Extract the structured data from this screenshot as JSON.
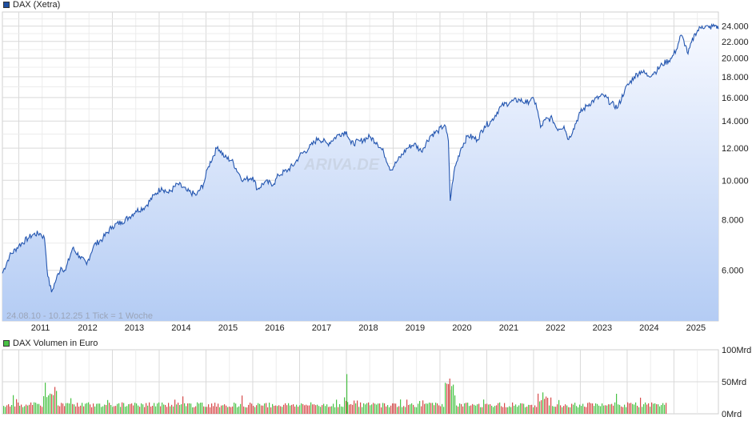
{
  "colors": {
    "price_line": "#2456b0",
    "area_top": "#f7f9ff",
    "area_bottom": "#b4ccf4",
    "volume_up": "#49c245",
    "volume_down": "#d64a4a",
    "grid": "#d9d9d9",
    "watermark": "#c8d2e2"
  },
  "legend": {
    "main": {
      "label": "DAX (Xetra)",
      "color": "#1f4fa0"
    },
    "volume": {
      "label": "DAX Volumen in Euro",
      "color": "#49c245"
    }
  },
  "info_text": "24.08.10 - 10.12.25    1 Tick = 1 Woche",
  "watermark": "ARIVA.DE",
  "chart_data": [
    {
      "type": "line",
      "title": "DAX (Xetra)",
      "x_tick_labels": [
        "2011",
        "2012",
        "2013",
        "2014",
        "2015",
        "2016",
        "2017",
        "2018",
        "2019",
        "2020",
        "2021",
        "2022",
        "2023",
        "2024",
        "2025"
      ],
      "y_scale": "log",
      "y_tick_labels": [
        "6.000",
        "8.000",
        "10.000",
        "12.000",
        "14.000",
        "16.000",
        "18.000",
        "20.000",
        "22.000",
        "24.000"
      ],
      "y_ticks": [
        6000,
        8000,
        10000,
        12000,
        14000,
        16000,
        18000,
        20000,
        22000,
        24000
      ],
      "ylim": [
        4500,
        26000
      ],
      "x_range": [
        2010.65,
        2025.95
      ],
      "grid": true,
      "series": [
        {
          "name": "DAX (Xetra)",
          "x": [
            2010.65,
            2010.8,
            2011.0,
            2011.2,
            2011.3,
            2011.45,
            2011.55,
            2011.62,
            2011.7,
            2011.8,
            2011.9,
            2012.0,
            2012.15,
            2012.3,
            2012.45,
            2012.6,
            2012.8,
            2013.0,
            2013.2,
            2013.35,
            2013.5,
            2013.7,
            2013.9,
            2014.05,
            2014.2,
            2014.4,
            2014.6,
            2014.8,
            2014.95,
            2015.05,
            2015.25,
            2015.4,
            2015.55,
            2015.7,
            2015.8,
            2016.0,
            2016.1,
            2016.25,
            2016.45,
            2016.55,
            2016.75,
            2016.9,
            2017.0,
            2017.2,
            2017.4,
            2017.6,
            2017.85,
            2018.0,
            2018.1,
            2018.3,
            2018.5,
            2018.65,
            2018.8,
            2018.95,
            2019.1,
            2019.3,
            2019.45,
            2019.6,
            2019.8,
            2019.95,
            2020.1,
            2020.18,
            2020.22,
            2020.3,
            2020.45,
            2020.6,
            2020.8,
            2020.95,
            2021.1,
            2021.3,
            2021.5,
            2021.7,
            2021.85,
            2021.95,
            2022.05,
            2022.15,
            2022.25,
            2022.4,
            2022.5,
            2022.65,
            2022.75,
            2022.85,
            2023.0,
            2023.15,
            2023.3,
            2023.5,
            2023.65,
            2023.8,
            2023.95,
            2024.15,
            2024.3,
            2024.45,
            2024.6,
            2024.75,
            2024.95,
            2025.05,
            2025.15,
            2025.25,
            2025.3,
            2025.45,
            2025.6,
            2025.75,
            2025.9,
            2025.95
          ],
          "y": [
            5900,
            6500,
            6900,
            7200,
            7350,
            7400,
            7200,
            5800,
            5300,
            5700,
            6100,
            6000,
            6800,
            6500,
            6200,
            6900,
            7200,
            7700,
            7900,
            8100,
            8400,
            8600,
            9200,
            9600,
            9300,
            9800,
            9400,
            9200,
            9800,
            10800,
            12100,
            11400,
            11200,
            10400,
            10000,
            10200,
            9500,
            9900,
            9800,
            10300,
            10600,
            11000,
            11500,
            12000,
            12700,
            12300,
            13000,
            13200,
            12300,
            12500,
            12800,
            12400,
            11700,
            10600,
            11200,
            12000,
            12300,
            11800,
            12900,
            13200,
            13700,
            12500,
            8900,
            10500,
            12000,
            12900,
            12600,
            13600,
            14000,
            15200,
            15600,
            15800,
            15500,
            15900,
            15500,
            13500,
            14100,
            14200,
            13400,
            13600,
            12600,
            13400,
            14700,
            15300,
            15800,
            16200,
            15500,
            15100,
            16700,
            18000,
            18600,
            18100,
            18500,
            19300,
            20000,
            21000,
            22800,
            21500,
            20500,
            23000,
            24000,
            23800,
            24100,
            23600
          ]
        }
      ]
    },
    {
      "type": "bar",
      "title": "DAX Volumen in Euro",
      "y_tick_labels": [
        "0Mrd",
        "50Mrd",
        "100Mrd"
      ],
      "ylim": [
        0,
        100
      ],
      "note": "weekly volume bars, green = up week, red = down week"
    }
  ]
}
